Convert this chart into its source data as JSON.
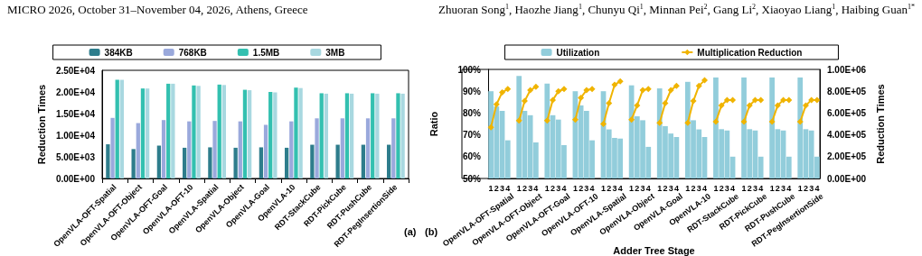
{
  "chart_data": [
    {
      "type": "bar",
      "ylabel": "Reduction Times",
      "legend": "top",
      "annotations": [
        "MICRO 2026, October 31–November 04, 2026, Athens, Greece",
        "Zhuoran Song$^{1}$, Haozhe Jiang$^{1}$, Chunyu Qi$^{1}$, Minnan Pei$^{2}$, Gang Li$^{2}$, Xiaoyao Liang$^{1}$, Haibing Guan$^{1*}$",
        "(a)"
      ],
      "categories": [
        "OpenVLA-OFT-Spatial",
        "OpenVLA-OFT-Object",
        "OpenVLA-OFT-Goal",
        "OpenVLA-OFT-10",
        "OpenVLA-Spatial",
        "OpenVLA-Object",
        "OpenVLA-Goal",
        "OpenVLA-10",
        "RDT-StackCube",
        "RDT-PickCube",
        "RDT-PushCube",
        "RDT-PegInsertionSide"
      ],
      "series": [
        {
          "name": "384KB",
          "color": "#2e7d8c",
          "values": [
            7900,
            6800,
            7600,
            7100,
            7200,
            7100,
            7200,
            7100,
            7800,
            7800,
            7800,
            7800
          ]
        },
        {
          "name": "768KB",
          "color": "#9aa9dc",
          "values": [
            14000,
            12800,
            13500,
            13200,
            13300,
            13200,
            12400,
            13200,
            13900,
            13900,
            13900,
            13900
          ]
        },
        {
          "name": "1.5MB",
          "color": "#33c0b0",
          "values": [
            22800,
            20800,
            21900,
            21500,
            21700,
            20500,
            20000,
            21000,
            19700,
            19700,
            19700,
            19700
          ]
        },
        {
          "name": "3MB",
          "color": "#a8d8e0",
          "values": [
            22800,
            20800,
            21900,
            21400,
            21600,
            20400,
            19900,
            20900,
            19600,
            19600,
            19600,
            19600
          ]
        }
      ],
      "ylim": [
        0,
        25000
      ],
      "yticks": [
        {
          "value": 0,
          "label": "0.00E+00"
        },
        {
          "value": 5000,
          "label": "5.00E+03"
        },
        {
          "value": 10000,
          "label": "1.00E+04"
        },
        {
          "value": 15000,
          "label": "1.50E+04"
        },
        {
          "value": 20000,
          "label": "2.00E+04"
        },
        {
          "value": 25000,
          "label": "2.50E+04"
        }
      ]
    },
    {
      "type": "bar",
      "ylabel": "Ratio",
      "y2label": "Reduction Times",
      "xlabel": "Adder Tree Stage",
      "legend": "top",
      "marker": "diamond",
      "annotations": [
        "(b)",
        "OpenVLA-OFT-Spatial",
        "OpenVLA-OFT-Object",
        "OpenVLA-OFT-Goal",
        "OpenVLA-OFT-10",
        "OpenVLA-Spatial",
        "OpenVLA-Object",
        "OpenVLA-Goal",
        "OpenVLA-10",
        "RDT-StackCube",
        "RDT-PickCube",
        "RDT-PushCube",
        "RDT-PegInsertionSide"
      ],
      "categories": [
        "1",
        "2",
        "3",
        "4",
        null,
        "1",
        "2",
        "3",
        "4",
        null,
        "1",
        "2",
        "3",
        "4",
        null,
        "1",
        "2",
        "3",
        "4",
        null,
        "1",
        "2",
        "3",
        "4",
        null,
        "1",
        "2",
        "3",
        "4",
        null,
        "1",
        "2",
        "3",
        "4",
        null,
        "1",
        "2",
        "3",
        "4",
        null,
        "1",
        "2",
        "3",
        "4",
        null,
        "1",
        "2",
        "3",
        "4",
        null,
        "1",
        "2",
        "3",
        "4",
        null,
        "1",
        "2",
        "3",
        "4"
      ],
      "series": [
        {
          "name": "Utilization",
          "color": "#92cddb",
          "values": [
            90,
            83,
            81,
            67.5,
            null,
            97,
            81,
            79,
            66.5,
            null,
            93.5,
            79,
            77,
            65.3,
            null,
            90,
            83.5,
            81,
            67.5,
            null,
            90,
            72.5,
            68.6,
            68.3,
            null,
            92.7,
            78.5,
            76.7,
            64.5,
            null,
            91.3,
            74,
            70.6,
            69,
            null,
            94.3,
            76.7,
            72.5,
            69,
            null,
            96.3,
            72.6,
            72,
            60,
            null,
            96.3,
            72.6,
            72,
            60,
            null,
            96.3,
            72.6,
            72,
            60,
            null,
            96.3,
            72.6,
            72,
            60
          ]
        },
        {
          "name": "Multiplication Reduction",
          "type": "line",
          "axis": "y2",
          "color": "#f0b400",
          "values": [
            470000,
            680000,
            790000,
            820000,
            null,
            530000,
            710000,
            810000,
            840000,
            null,
            530000,
            720000,
            800000,
            820000,
            null,
            540000,
            740000,
            810000,
            820000,
            null,
            500000,
            690000,
            860000,
            890000,
            null,
            540000,
            670000,
            810000,
            820000,
            null,
            510000,
            690000,
            810000,
            850000,
            null,
            510000,
            710000,
            850000,
            900000,
            null,
            520000,
            670000,
            720000,
            720000,
            null,
            520000,
            670000,
            720000,
            720000,
            null,
            520000,
            670000,
            720000,
            720000,
            null,
            520000,
            670000,
            720000,
            720000
          ]
        }
      ],
      "ylim": [
        50,
        100
      ],
      "yticks": [
        {
          "value": 50,
          "label": "50%"
        },
        {
          "value": 60,
          "label": "60%"
        },
        {
          "value": 70,
          "label": "70%"
        },
        {
          "value": 80,
          "label": "80%"
        },
        {
          "value": 90,
          "label": "90%"
        },
        {
          "value": 100,
          "label": "100%"
        }
      ],
      "y2lim": [
        0,
        1000000
      ],
      "y2ticks": [
        {
          "value": 0,
          "label": "0.00E+00"
        },
        {
          "value": 200000,
          "label": "2.00E+05"
        },
        {
          "value": 400000,
          "label": "4.00E+05"
        },
        {
          "value": 600000,
          "label": "6.00E+05"
        },
        {
          "value": 800000,
          "label": "8.00E+05"
        },
        {
          "value": 1000000,
          "label": "1.00E+06"
        }
      ]
    }
  ]
}
